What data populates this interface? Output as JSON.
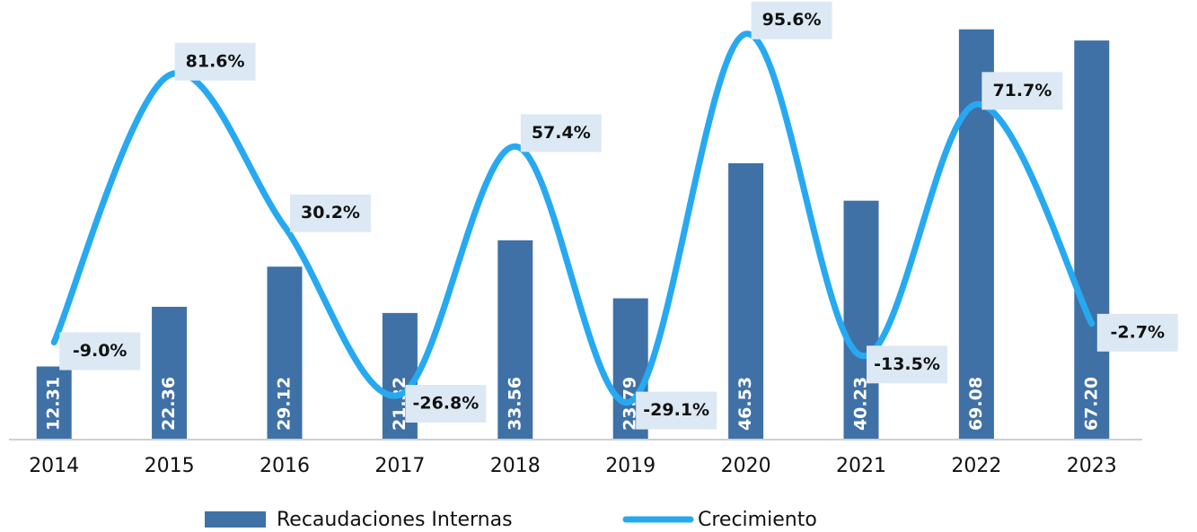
{
  "chart_data": {
    "type": "bar_line",
    "categories": [
      "2014",
      "2015",
      "2016",
      "2017",
      "2018",
      "2019",
      "2020",
      "2021",
      "2022",
      "2023"
    ],
    "series": [
      {
        "name": "Recaudaciones Internas",
        "color": "#3f71a6",
        "type": "bar",
        "values": [
          12.31,
          22.36,
          29.12,
          21.32,
          33.56,
          23.79,
          46.53,
          40.23,
          69.08,
          67.2
        ],
        "value_labels": [
          "12.31",
          "22.36",
          "29.12",
          "21.32",
          "33.56",
          "23.79",
          "46.53",
          "40.23",
          "69.08",
          "67.20"
        ]
      },
      {
        "name": "Crecimiento",
        "color": "#27a9f1",
        "type": "line",
        "axis": "y2",
        "values": [
          -9.0,
          81.6,
          30.2,
          -26.8,
          57.4,
          -29.1,
          95.6,
          -13.5,
          71.7,
          -2.7
        ],
        "value_labels": [
          "-9.0%",
          "81.6%",
          "30.2%",
          "-26.8%",
          "57.4%",
          "-29.1%",
          "95.6%",
          "-13.5%",
          "71.7%",
          "-2.7%"
        ]
      }
    ],
    "ylim": [
      0,
      71
    ],
    "y2lim": [
      -42,
      101
    ],
    "legend": "bottom"
  }
}
